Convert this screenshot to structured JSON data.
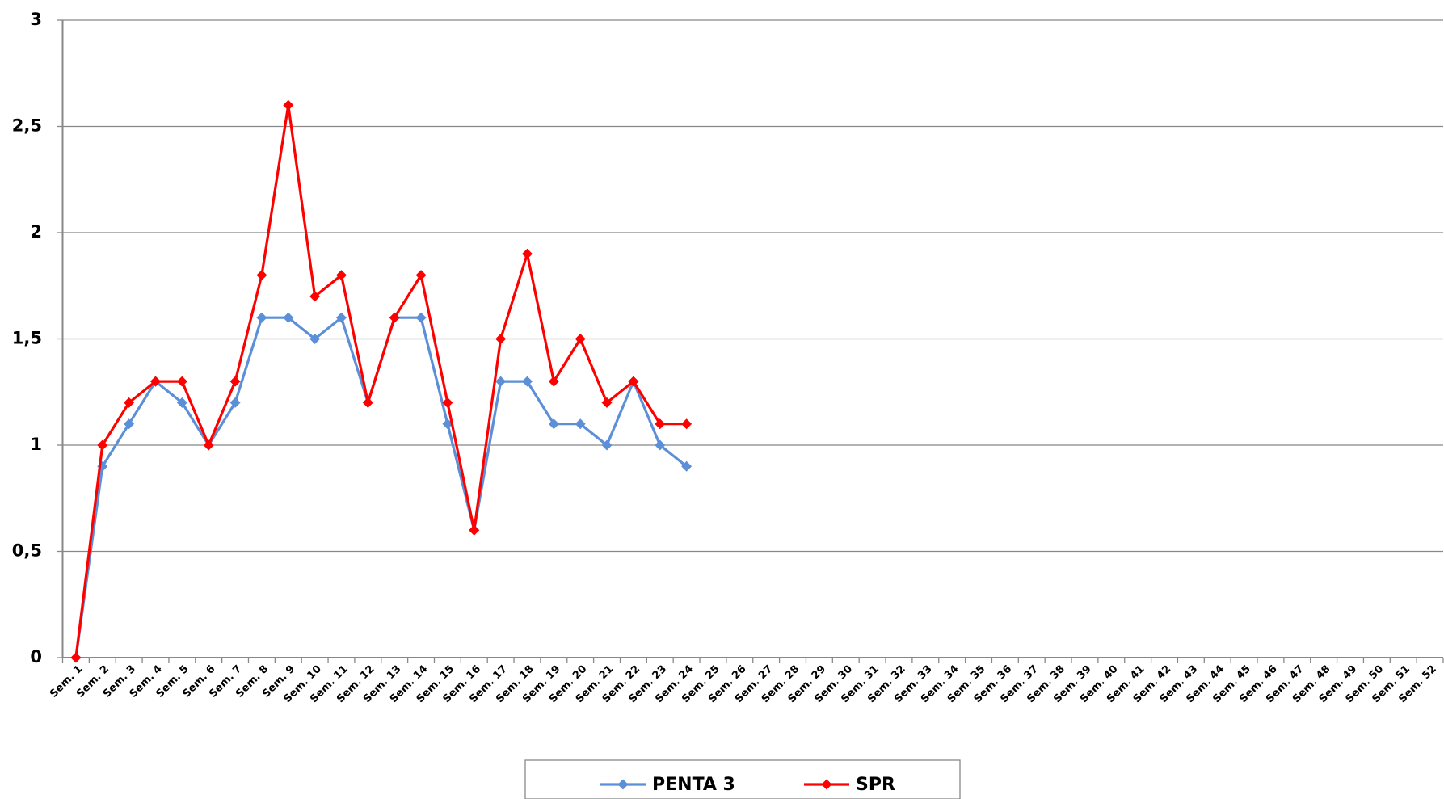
{
  "chart_data": {
    "type": "line",
    "categories": [
      "Sem. 1",
      "Sem. 2",
      "Sem. 3",
      "Sem. 4",
      "Sem. 5",
      "Sem. 6",
      "Sem. 7",
      "Sem. 8",
      "Sem. 9",
      "Sem. 10",
      "Sem. 11",
      "Sem. 12",
      "Sem. 13",
      "Sem. 14",
      "Sem. 15",
      "Sem. 16",
      "Sem. 17",
      "Sem. 18",
      "Sem. 19",
      "Sem. 20",
      "Sem. 21",
      "Sem. 22",
      "Sem. 23",
      "Sem. 24",
      "Sem. 25",
      "Sem. 26",
      "Sem. 27",
      "Sem. 28",
      "Sem. 29",
      "Sem. 30",
      "Sem. 31",
      "Sem. 32",
      "Sem. 33",
      "Sem. 34",
      "Sem. 35",
      "Sem. 36",
      "Sem. 37",
      "Sem. 38",
      "Sem. 39",
      "Sem. 40",
      "Sem. 41",
      "Sem. 42",
      "Sem. 43",
      "Sem. 44",
      "Sem. 45",
      "Sem. 46",
      "Sem. 47",
      "Sem. 48",
      "Sem. 49",
      "Sem. 50",
      "Sem. 51",
      "Sem. 52"
    ],
    "series": [
      {
        "name": "PENTA 3",
        "color": "#5b8fd8",
        "values": [
          0,
          0.9,
          1.1,
          1.3,
          1.2,
          1.0,
          1.2,
          1.6,
          1.6,
          1.5,
          1.6,
          1.2,
          1.6,
          1.6,
          1.1,
          0.6,
          1.3,
          1.3,
          1.1,
          1.1,
          1.0,
          1.3,
          1.0,
          0.9,
          null,
          null,
          null,
          null,
          null,
          null,
          null,
          null,
          null,
          null,
          null,
          null,
          null,
          null,
          null,
          null,
          null,
          null,
          null,
          null,
          null,
          null,
          null,
          null,
          null,
          null,
          null,
          null
        ]
      },
      {
        "name": "SPR",
        "color": "#ff0000",
        "values": [
          0,
          1.0,
          1.2,
          1.3,
          1.3,
          1.0,
          1.3,
          1.8,
          2.6,
          1.7,
          1.8,
          1.2,
          1.6,
          1.8,
          1.2,
          0.6,
          1.5,
          1.9,
          1.3,
          1.5,
          1.2,
          1.3,
          1.1,
          1.1,
          null,
          null,
          null,
          null,
          null,
          null,
          null,
          null,
          null,
          null,
          null,
          null,
          null,
          null,
          null,
          null,
          null,
          null,
          null,
          null,
          null,
          null,
          null,
          null,
          null,
          null,
          null,
          null
        ]
      }
    ],
    "ylim": [
      0,
      3
    ],
    "yticks": [
      0,
      {
        "value": 0.5,
        "label": "0,5"
      },
      1,
      {
        "value": 1.5,
        "label": "1,5"
      },
      2,
      {
        "value": 2.5,
        "label": "2,5"
      },
      3
    ],
    "grid": true,
    "legend": "bottom"
  }
}
